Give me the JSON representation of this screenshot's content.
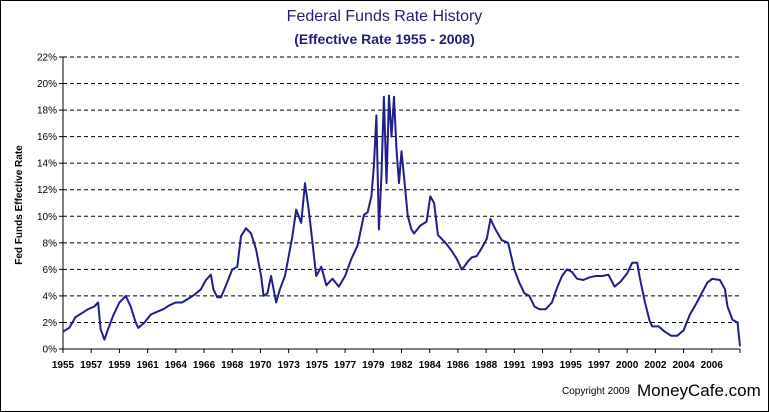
{
  "chart_data": {
    "type": "line",
    "title": "Federal Funds Rate History",
    "subtitle": "(Effective Rate 1955 - 2008)",
    "xlabel": "",
    "ylabel": "Fed Funds Effective Rate",
    "ylim": [
      0,
      22
    ],
    "xlim": [
      1955,
      2009
    ],
    "grid": "horizontal dashed",
    "legend": "none",
    "yticks": [
      "0%",
      "2%",
      "4%",
      "6%",
      "8%",
      "10%",
      "12%",
      "14%",
      "16%",
      "18%",
      "20%",
      "22%"
    ],
    "xticks": [
      "1955",
      "1957",
      "1959",
      "1961",
      "1964",
      "1966",
      "1968",
      "1970",
      "1973",
      "1975",
      "1977",
      "1979",
      "1982",
      "1984",
      "1986",
      "1988",
      "1991",
      "1993",
      "1995",
      "1997",
      "2000",
      "2002",
      "2004",
      "2006"
    ],
    "line_color": "#1f1f8c",
    "series": [
      {
        "x": [
          1955.0,
          1955.5,
          1956.0,
          1956.5,
          1957.0,
          1957.5,
          1957.8,
          1958.0,
          1958.3,
          1958.6,
          1959.0,
          1959.5,
          1960.0,
          1960.4,
          1960.8,
          1961.0,
          1961.5,
          1962.0,
          1962.5,
          1963.0,
          1963.5,
          1964.0,
          1964.5,
          1965.0,
          1965.5,
          1966.0,
          1966.4,
          1966.8,
          1967.0,
          1967.3,
          1967.6,
          1968.0,
          1968.5,
          1968.9,
          1969.2,
          1969.6,
          1970.0,
          1970.4,
          1970.8,
          1971.0,
          1971.3,
          1971.6,
          1972.0,
          1972.3,
          1972.7,
          1973.0,
          1973.3,
          1973.6,
          1974.0,
          1974.3,
          1974.6,
          1974.9,
          1975.2,
          1975.6,
          1976.0,
          1976.5,
          1977.0,
          1977.5,
          1978.0,
          1978.5,
          1979.0,
          1979.3,
          1979.6,
          1979.8,
          1980.0,
          1980.2,
          1980.4,
          1980.6,
          1980.8,
          1981.0,
          1981.2,
          1981.4,
          1981.6,
          1981.8,
          1982.0,
          1982.2,
          1982.5,
          1982.8,
          1983.0,
          1983.5,
          1984.0,
          1984.3,
          1984.6,
          1984.9,
          1985.2,
          1985.6,
          1986.0,
          1986.4,
          1986.8,
          1987.0,
          1987.3,
          1987.6,
          1988.0,
          1988.4,
          1988.8,
          1989.1,
          1989.5,
          1990.0,
          1990.5,
          1991.0,
          1991.4,
          1991.8,
          1992.2,
          1992.6,
          1993.0,
          1993.5,
          1994.0,
          1994.4,
          1994.8,
          1995.2,
          1995.6,
          1996.0,
          1996.5,
          1997.0,
          1997.5,
          1998.0,
          1998.5,
          1999.0,
          1999.5,
          2000.0,
          2000.4,
          2000.8,
          2001.0,
          2001.4,
          2001.8,
          2002.0,
          2002.5,
          2003.0,
          2003.5,
          2004.0,
          2004.5,
          2005.0,
          2005.5,
          2006.0,
          2006.4,
          2006.8,
          2007.0,
          2007.4,
          2007.8,
          2008.0,
          2008.4,
          2008.8,
          2009.0
        ],
        "values": [
          1.3,
          1.6,
          2.4,
          2.7,
          3.0,
          3.2,
          3.5,
          1.5,
          0.7,
          1.5,
          2.5,
          3.5,
          4.0,
          3.2,
          2.0,
          1.6,
          2.0,
          2.6,
          2.8,
          3.0,
          3.3,
          3.5,
          3.5,
          3.8,
          4.1,
          4.5,
          5.2,
          5.6,
          4.5,
          3.9,
          3.9,
          4.8,
          6.0,
          6.2,
          8.5,
          9.1,
          8.7,
          7.5,
          5.5,
          4.0,
          4.2,
          5.5,
          3.5,
          4.5,
          5.5,
          7.0,
          8.5,
          10.5,
          9.5,
          12.5,
          10.5,
          8.0,
          5.5,
          6.2,
          4.8,
          5.3,
          4.7,
          5.5,
          6.8,
          7.8,
          10.1,
          10.3,
          11.5,
          13.8,
          17.6,
          9.0,
          13.0,
          19.0,
          12.5,
          19.1,
          16.0,
          19.0,
          15.0,
          12.5,
          14.9,
          13.0,
          10.0,
          9.0,
          8.7,
          9.3,
          9.6,
          11.5,
          11.0,
          8.6,
          8.3,
          7.9,
          7.4,
          6.8,
          6.0,
          6.2,
          6.6,
          6.9,
          7.0,
          7.6,
          8.3,
          9.8,
          9.0,
          8.2,
          8.0,
          6.0,
          5.0,
          4.2,
          4.0,
          3.2,
          3.0,
          3.0,
          3.5,
          4.6,
          5.5,
          6.0,
          5.8,
          5.3,
          5.2,
          5.4,
          5.5,
          5.5,
          5.6,
          4.7,
          5.1,
          5.7,
          6.5,
          6.5,
          5.4,
          3.6,
          2.1,
          1.7,
          1.7,
          1.3,
          1.0,
          1.0,
          1.4,
          2.6,
          3.4,
          4.3,
          5.0,
          5.3,
          5.25,
          5.2,
          4.5,
          3.2,
          2.2,
          2.0,
          0.2
        ]
      }
    ]
  },
  "footer": {
    "copyright": "Copyright 2009",
    "brand": "MoneyCafe.com"
  }
}
